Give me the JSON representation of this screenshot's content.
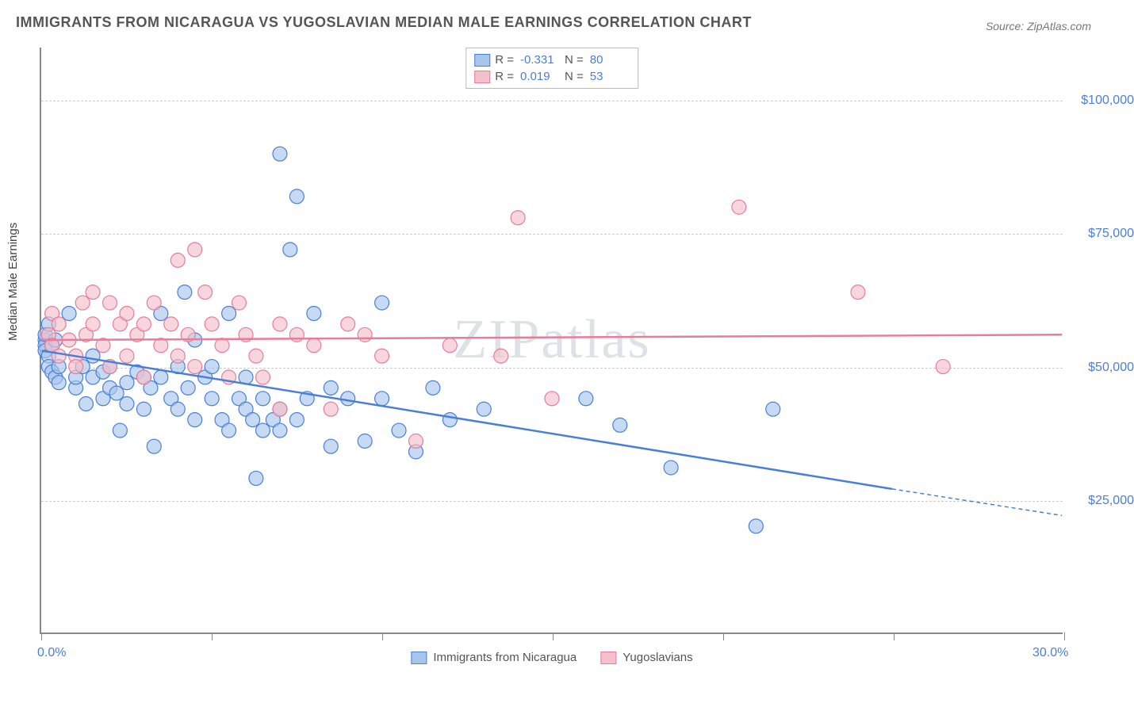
{
  "title": "IMMIGRANTS FROM NICARAGUA VS YUGOSLAVIAN MEDIAN MALE EARNINGS CORRELATION CHART",
  "source": "Source: ZipAtlas.com",
  "watermark": "ZIPatlas",
  "ylabel": "Median Male Earnings",
  "chart": {
    "type": "scatter",
    "xlim": [
      0,
      30
    ],
    "ylim": [
      0,
      110000
    ],
    "xtick_positions": [
      0,
      5,
      10,
      15,
      20,
      25,
      30
    ],
    "xtick_labels_visible": {
      "0": "0.0%",
      "30": "30.0%"
    },
    "ytick_positions": [
      25000,
      50000,
      75000,
      100000
    ],
    "ytick_labels": [
      "$25,000",
      "$50,000",
      "$75,000",
      "$100,000"
    ],
    "grid_color": "#cccccc",
    "background_color": "#ffffff",
    "axis_color": "#888888",
    "marker_radius": 9,
    "marker_stroke_width": 1.2,
    "marker_fill_opacity": 0.35,
    "trend_line_width": 2.5,
    "series": [
      {
        "name": "Immigrants from Nicaragua",
        "color_fill": "#a8c6ec",
        "color_stroke": "#4a7fd8",
        "R": "-0.331",
        "N": "80",
        "trend": {
          "x1": 0,
          "y1": 53000,
          "x2": 25,
          "y2": 27000,
          "extrap_x2": 30,
          "extrap_y2": 22000
        },
        "points": [
          [
            0.1,
            55000
          ],
          [
            0.1,
            54000
          ],
          [
            0.1,
            53000
          ],
          [
            0.1,
            56000
          ],
          [
            0.2,
            52000
          ],
          [
            0.2,
            58000
          ],
          [
            0.2,
            50000
          ],
          [
            0.3,
            49000
          ],
          [
            0.3,
            54000
          ],
          [
            0.4,
            48000
          ],
          [
            0.4,
            55000
          ],
          [
            0.5,
            47000
          ],
          [
            0.5,
            50000
          ],
          [
            0.8,
            60000
          ],
          [
            1.0,
            46000
          ],
          [
            1.0,
            48000
          ],
          [
            1.2,
            50000
          ],
          [
            1.3,
            43000
          ],
          [
            1.5,
            48000
          ],
          [
            1.5,
            52000
          ],
          [
            1.8,
            49000
          ],
          [
            1.8,
            44000
          ],
          [
            2.0,
            46000
          ],
          [
            2.0,
            50000
          ],
          [
            2.2,
            45000
          ],
          [
            2.3,
            38000
          ],
          [
            2.5,
            47000
          ],
          [
            2.5,
            43000
          ],
          [
            2.8,
            49000
          ],
          [
            3.0,
            42000
          ],
          [
            3.0,
            48000
          ],
          [
            3.2,
            46000
          ],
          [
            3.3,
            35000
          ],
          [
            3.5,
            48000
          ],
          [
            3.5,
            60000
          ],
          [
            3.8,
            44000
          ],
          [
            4.0,
            50000
          ],
          [
            4.0,
            42000
          ],
          [
            4.2,
            64000
          ],
          [
            4.3,
            46000
          ],
          [
            4.5,
            55000
          ],
          [
            4.5,
            40000
          ],
          [
            4.8,
            48000
          ],
          [
            5.0,
            44000
          ],
          [
            5.0,
            50000
          ],
          [
            5.3,
            40000
          ],
          [
            5.5,
            60000
          ],
          [
            5.5,
            38000
          ],
          [
            5.8,
            44000
          ],
          [
            6.0,
            42000
          ],
          [
            6.0,
            48000
          ],
          [
            6.2,
            40000
          ],
          [
            6.3,
            29000
          ],
          [
            6.5,
            44000
          ],
          [
            6.5,
            38000
          ],
          [
            6.8,
            40000
          ],
          [
            7.0,
            90000
          ],
          [
            7.0,
            42000
          ],
          [
            7.0,
            38000
          ],
          [
            7.3,
            72000
          ],
          [
            7.5,
            40000
          ],
          [
            7.5,
            82000
          ],
          [
            7.8,
            44000
          ],
          [
            8.0,
            60000
          ],
          [
            8.5,
            35000
          ],
          [
            8.5,
            46000
          ],
          [
            9.0,
            44000
          ],
          [
            9.5,
            36000
          ],
          [
            10.0,
            62000
          ],
          [
            10.0,
            44000
          ],
          [
            10.5,
            38000
          ],
          [
            11.0,
            34000
          ],
          [
            11.5,
            46000
          ],
          [
            12.0,
            40000
          ],
          [
            13.0,
            42000
          ],
          [
            16.0,
            44000
          ],
          [
            17.0,
            39000
          ],
          [
            18.5,
            31000
          ],
          [
            21.0,
            20000
          ],
          [
            21.5,
            42000
          ]
        ]
      },
      {
        "name": "Yugoslavians",
        "color_fill": "#f4c0cb",
        "color_stroke": "#e87c9a",
        "R": "0.019",
        "N": "53",
        "trend": {
          "x1": 0,
          "y1": 55000,
          "x2": 30,
          "y2": 56000
        },
        "points": [
          [
            0.2,
            56000
          ],
          [
            0.3,
            54000
          ],
          [
            0.3,
            60000
          ],
          [
            0.5,
            52000
          ],
          [
            0.5,
            58000
          ],
          [
            0.8,
            55000
          ],
          [
            1.0,
            52000
          ],
          [
            1.0,
            50000
          ],
          [
            1.2,
            62000
          ],
          [
            1.3,
            56000
          ],
          [
            1.5,
            58000
          ],
          [
            1.5,
            64000
          ],
          [
            1.8,
            54000
          ],
          [
            2.0,
            50000
          ],
          [
            2.0,
            62000
          ],
          [
            2.3,
            58000
          ],
          [
            2.5,
            52000
          ],
          [
            2.5,
            60000
          ],
          [
            2.8,
            56000
          ],
          [
            3.0,
            48000
          ],
          [
            3.0,
            58000
          ],
          [
            3.3,
            62000
          ],
          [
            3.5,
            54000
          ],
          [
            3.8,
            58000
          ],
          [
            4.0,
            52000
          ],
          [
            4.0,
            70000
          ],
          [
            4.3,
            56000
          ],
          [
            4.5,
            72000
          ],
          [
            4.5,
            50000
          ],
          [
            4.8,
            64000
          ],
          [
            5.0,
            58000
          ],
          [
            5.3,
            54000
          ],
          [
            5.5,
            48000
          ],
          [
            5.8,
            62000
          ],
          [
            6.0,
            56000
          ],
          [
            6.3,
            52000
          ],
          [
            6.5,
            48000
          ],
          [
            7.0,
            58000
          ],
          [
            7.0,
            42000
          ],
          [
            7.5,
            56000
          ],
          [
            8.0,
            54000
          ],
          [
            8.5,
            42000
          ],
          [
            9.0,
            58000
          ],
          [
            9.5,
            56000
          ],
          [
            10.0,
            52000
          ],
          [
            11.0,
            36000
          ],
          [
            12.0,
            54000
          ],
          [
            13.5,
            52000
          ],
          [
            14.0,
            78000
          ],
          [
            15.0,
            44000
          ],
          [
            20.5,
            80000
          ],
          [
            24.0,
            64000
          ],
          [
            26.5,
            50000
          ]
        ]
      }
    ],
    "legend_bottom": {
      "blue_label": "Immigrants from Nicaragua",
      "pink_label": "Yugoslavians"
    }
  }
}
